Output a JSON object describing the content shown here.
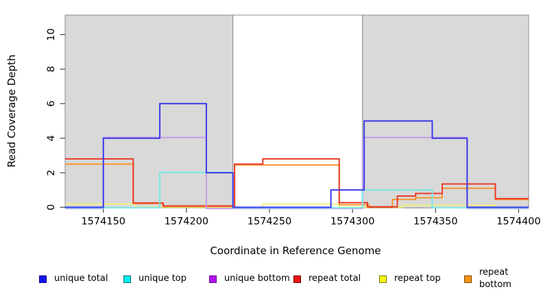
{
  "chart_data": {
    "type": "line",
    "subtype": "step-after-coverage",
    "title": "",
    "xlabel": "Coordinate in Reference Genome",
    "ylabel": "Read Coverage Depth",
    "x_domain": [
      1574127,
      1574406
    ],
    "y_domain": [
      0,
      11.13
    ],
    "x_ticks": [
      1574150,
      1574200,
      1574250,
      1574300,
      1574350,
      1574400
    ],
    "y_ticks": [
      0,
      2,
      4,
      6,
      8,
      10
    ],
    "grid": "off",
    "legend_position": "bottom",
    "region_border_color": "#8c8c8c",
    "regions": [
      {
        "name": "shaded-left",
        "start": 1574127,
        "end": 1574228,
        "fill": "#d9d9d9"
      },
      {
        "name": "white-middle",
        "start": 1574228,
        "end": 1574306,
        "fill": "#ffffff"
      },
      {
        "name": "shaded-right",
        "start": 1574306,
        "end": 1574406,
        "fill": "#d9d9d9"
      }
    ],
    "series": [
      {
        "name": "repeat top",
        "color": "#f0ef7d",
        "points": [
          [
            1574127,
            0.19
          ],
          [
            1574169,
            0
          ],
          [
            1574246,
            0.19
          ],
          [
            1574292,
            0
          ],
          [
            1574330,
            0.12
          ],
          [
            1574386,
            0
          ]
        ]
      },
      {
        "name": "repeat bottom",
        "color": "#f8952f",
        "points": [
          [
            1574127,
            2.5
          ],
          [
            1574168,
            0.22
          ],
          [
            1574186,
            0.05
          ],
          [
            1574229,
            2.45
          ],
          [
            1574292,
            0.15
          ],
          [
            1574310,
            0
          ],
          [
            1574324,
            0.45
          ],
          [
            1574338,
            0.55
          ],
          [
            1574354,
            1.1
          ],
          [
            1574386,
            0.45
          ]
        ]
      },
      {
        "name": "repeat total",
        "color": "#ea3a28",
        "points": [
          [
            1574127,
            2.8
          ],
          [
            1574168,
            0.25
          ],
          [
            1574186,
            0.08
          ],
          [
            1574229,
            2.5
          ],
          [
            1574246,
            2.8
          ],
          [
            1574292,
            0.27
          ],
          [
            1574309,
            0.03
          ],
          [
            1574327,
            0.65
          ],
          [
            1574338,
            0.8
          ],
          [
            1574354,
            1.35
          ],
          [
            1574386,
            0.5
          ]
        ]
      },
      {
        "name": "unique bottom",
        "color": "#c59ce7",
        "points": [
          [
            1574127,
            -0.07
          ],
          [
            1574150,
            4.04
          ],
          [
            1574212,
            -0.07
          ],
          [
            1574306,
            4.04
          ],
          [
            1574369,
            -0.07
          ]
        ]
      },
      {
        "name": "unique top",
        "color": "#76e8e8",
        "points": [
          [
            1574127,
            -0.03
          ],
          [
            1574184,
            2.02
          ],
          [
            1574228,
            -0.03
          ],
          [
            1574306,
            1
          ],
          [
            1574348,
            -0.03
          ]
        ]
      },
      {
        "name": "unique total",
        "color": "#3a3ae8",
        "points": [
          [
            1574127,
            0
          ],
          [
            1574150,
            4
          ],
          [
            1574184,
            6
          ],
          [
            1574212,
            2
          ],
          [
            1574228,
            0
          ],
          [
            1574287,
            1
          ],
          [
            1574307,
            5
          ],
          [
            1574348,
            4
          ],
          [
            1574369,
            0
          ]
        ]
      }
    ]
  },
  "axis": {
    "x_label": "Coordinate in Reference Genome",
    "y_label": "Read Coverage Depth"
  },
  "legend": {
    "items": [
      {
        "label": "unique total",
        "fill": "#1414ee",
        "border": "#00008b"
      },
      {
        "label": "unique top",
        "fill": "#00eeee",
        "border": "#006e6e"
      },
      {
        "label": "unique bottom",
        "fill": "#b413ee",
        "border": "#5e0a87"
      },
      {
        "label": "repeat total",
        "fill": "#ee1313",
        "border": "#7a0000"
      },
      {
        "label": "repeat top",
        "fill": "#f5f513",
        "border": "#7a7a00"
      },
      {
        "label": "repeat bottom",
        "fill": "#f59413",
        "border": "#7a4a00"
      }
    ]
  }
}
